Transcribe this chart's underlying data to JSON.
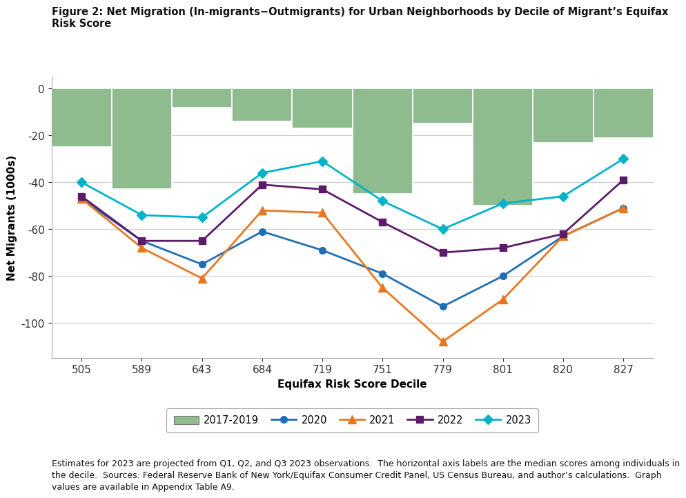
{
  "title": "Figure 2: Net Migration (In-migrants−Outmigrants) for Urban Neighborhoods by Decile of Migrant’s Equifax\nRisk Score",
  "xlabel": "Equifax Risk Score Decile",
  "ylabel": "Net Migrants (1000s)",
  "x_labels": [
    "505",
    "589",
    "643",
    "684",
    "719",
    "751",
    "779",
    "801",
    "820",
    "827"
  ],
  "bar_values": [
    -25,
    -43,
    -8,
    -14,
    -17,
    -45,
    -15,
    -50,
    -23,
    -21
  ],
  "line_2020": [
    -47,
    -65,
    -75,
    -61,
    -69,
    -79,
    -93,
    -80,
    -63,
    -51
  ],
  "line_2021": [
    -47,
    -68,
    -81,
    -52,
    -53,
    -85,
    -108,
    -90,
    -63,
    -51
  ],
  "line_2022": [
    -46,
    -65,
    -65,
    -41,
    -43,
    -57,
    -70,
    -68,
    -62,
    -39
  ],
  "line_2023": [
    -40,
    -54,
    -55,
    -36,
    -31,
    -48,
    -60,
    -49,
    -46,
    -30
  ],
  "bar_color": "#8FBC8F",
  "bar_edge_color": "#ffffff",
  "color_2020": "#1f6eb5",
  "color_2021": "#e87722",
  "color_2022": "#5c1a6b",
  "color_2023": "#00b3c8",
  "ylim": [
    -115,
    5
  ],
  "yticks": [
    0,
    -20,
    -40,
    -60,
    -80,
    -100
  ],
  "caption": "Estimates for 2023 are projected from Q1, Q2, and Q3 2023 observations.  The horizontal axis labels are the median scores among individuals in\nthe decile.  Sources: Federal Reserve Bank of New York/Equifax Consumer Credit Panel, US Census Bureau, and author’s calculations.  Graph\nvalues are available in Appendix Table A9.",
  "background_color": "#ffffff",
  "title_fontsize": 10.5,
  "axis_fontsize": 11,
  "label_fontsize": 11,
  "caption_fontsize": 9
}
